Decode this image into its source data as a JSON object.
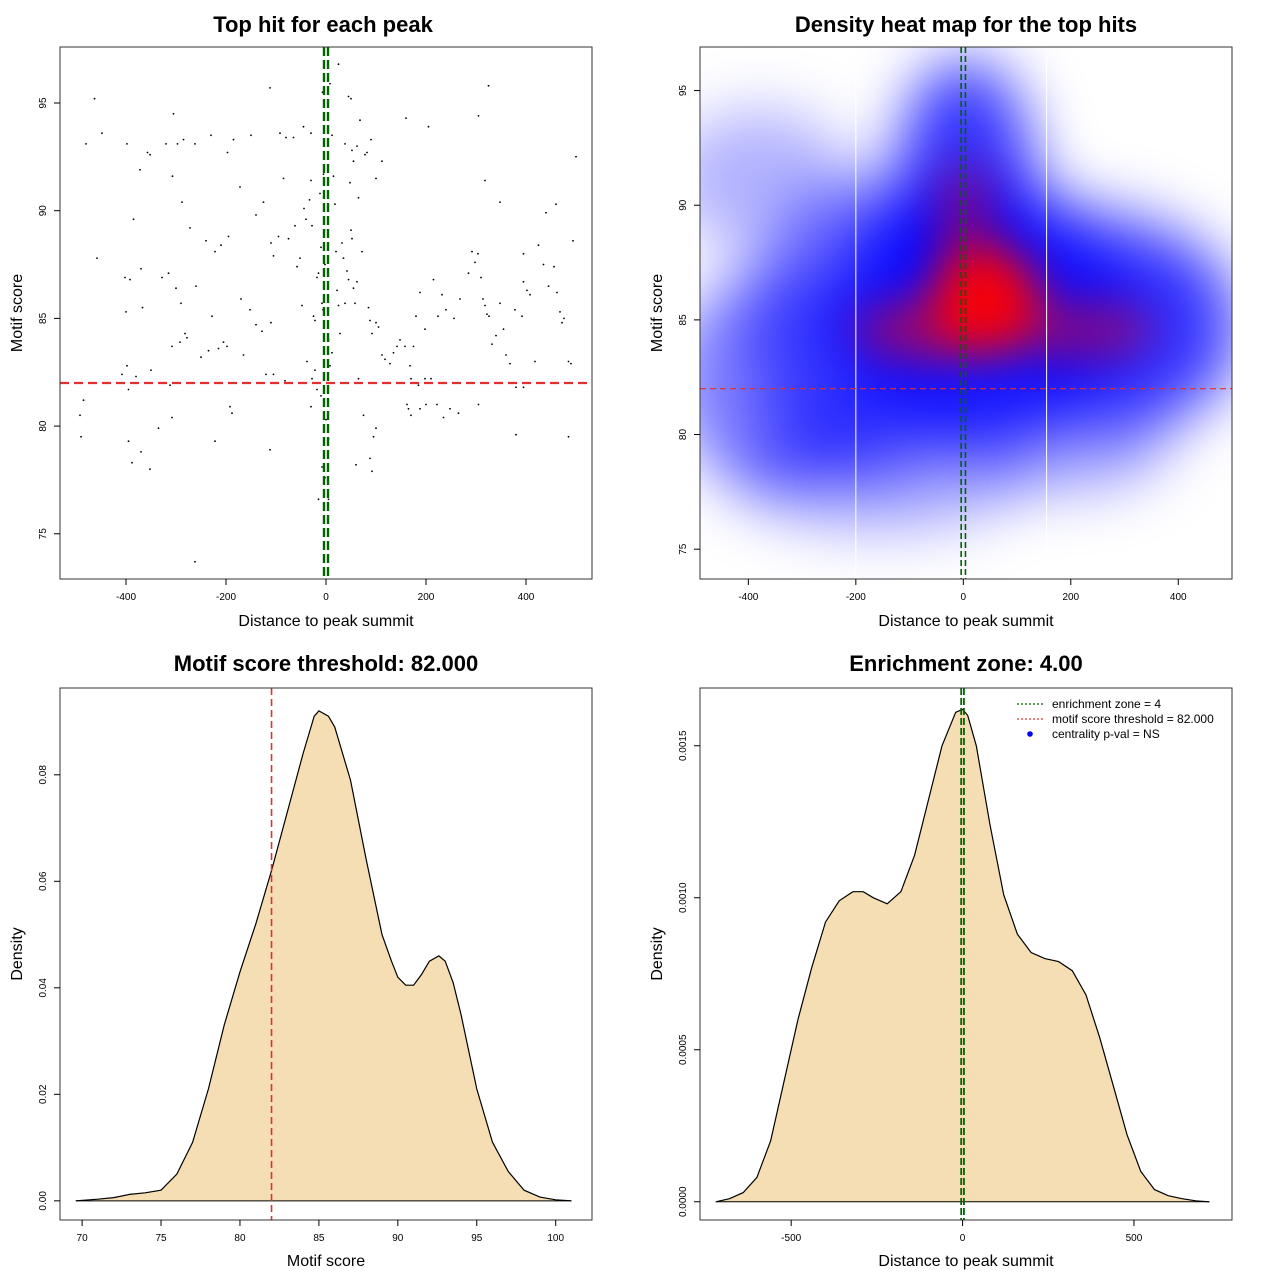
{
  "colors": {
    "threshold": "#e03030",
    "zone": "#006400",
    "fill": "#f5deb3",
    "heat_low": "#ffffff",
    "heat_mid": "#0000ff",
    "heat_high": "#ff0000",
    "legend_point": "#0000ff"
  },
  "chart_data": [
    {
      "id": "scatter",
      "type": "scatter",
      "title": "Top hit for each peak",
      "xlabel": "Distance to peak summit",
      "ylabel": "Motif score",
      "xlim": [
        -532,
        532
      ],
      "ylim": [
        72.9,
        97.6
      ],
      "xticks": [
        -400,
        -200,
        0,
        200,
        400
      ],
      "yticks": [
        75,
        80,
        85,
        90,
        95
      ],
      "threshold_y": 82,
      "zone_x": [
        -4,
        4
      ],
      "points": [
        [
          -463,
          95.2
        ],
        [
          -448,
          93.6
        ],
        [
          -480,
          93.1
        ],
        [
          -398,
          93.1
        ],
        [
          -357,
          92.7
        ],
        [
          -352,
          92.6
        ],
        [
          -320,
          93.1
        ],
        [
          -305,
          94.5
        ],
        [
          -297,
          93.1
        ],
        [
          -285,
          93.3
        ],
        [
          -262,
          93.1
        ],
        [
          -230,
          93.5
        ],
        [
          -197,
          92.7
        ],
        [
          -185,
          93.3
        ],
        [
          -150,
          93.5
        ],
        [
          -172,
          91.1
        ],
        [
          -307,
          91.6
        ],
        [
          -372,
          91.9
        ],
        [
          -385,
          89.6
        ],
        [
          -288,
          90.4
        ],
        [
          -272,
          89.2
        ],
        [
          -240,
          88.6
        ],
        [
          -222,
          88.1
        ],
        [
          -210,
          88.4
        ],
        [
          -195,
          88.8
        ],
        [
          -458,
          87.8
        ],
        [
          -402,
          86.9
        ],
        [
          -392,
          86.8
        ],
        [
          -370,
          87.3
        ],
        [
          -328,
          86.9
        ],
        [
          -315,
          87.1
        ],
        [
          -300,
          86.4
        ],
        [
          -290,
          85.7
        ],
        [
          -260,
          86.5
        ],
        [
          -228,
          85.1
        ],
        [
          -170,
          85.9
        ],
        [
          -152,
          85.4
        ],
        [
          -140,
          84.7
        ],
        [
          -110,
          84.8
        ],
        [
          -128,
          84.4
        ],
        [
          -400,
          85.3
        ],
        [
          -367,
          85.5
        ],
        [
          -308,
          83.7
        ],
        [
          -292,
          83.9
        ],
        [
          -282,
          84.3
        ],
        [
          -278,
          84.1
        ],
        [
          -250,
          83.2
        ],
        [
          -235,
          83.5
        ],
        [
          -215,
          83.6
        ],
        [
          -205,
          83.9
        ],
        [
          -198,
          83.7
        ],
        [
          -165,
          83.3
        ],
        [
          -120,
          82.4
        ],
        [
          -105,
          82.4
        ],
        [
          -82,
          82.1
        ],
        [
          -398,
          82.8
        ],
        [
          -380,
          82.3
        ],
        [
          -408,
          82.4
        ],
        [
          -395,
          81.7
        ],
        [
          -312,
          81.9
        ],
        [
          -350,
          82.6
        ],
        [
          -492,
          80.5
        ],
        [
          -485,
          81.2
        ],
        [
          -490,
          79.5
        ],
        [
          -395,
          79.3
        ],
        [
          -388,
          78.3
        ],
        [
          -370,
          78.8
        ],
        [
          -352,
          78.0
        ],
        [
          -335,
          79.9
        ],
        [
          -308,
          80.4
        ],
        [
          -192,
          80.9
        ],
        [
          -188,
          80.6
        ],
        [
          -222,
          79.3
        ],
        [
          -112,
          78.9
        ],
        [
          -262,
          73.7
        ],
        [
          -140,
          89.8
        ],
        [
          -125,
          90.4
        ],
        [
          -110,
          88.5
        ],
        [
          -105,
          87.9
        ],
        [
          -95,
          88.8
        ],
        [
          -85,
          91.5
        ],
        [
          -75,
          88.7
        ],
        [
          -62,
          89.3
        ],
        [
          -58,
          87.4
        ],
        [
          -48,
          85.6
        ],
        [
          -52,
          87.8
        ],
        [
          -44,
          90.1
        ],
        [
          -40,
          89.6
        ],
        [
          -33,
          90.5
        ],
        [
          -30,
          91.4
        ],
        [
          -28,
          89.3
        ],
        [
          -25,
          85.1
        ],
        [
          -22,
          84.9
        ],
        [
          -18,
          86.9
        ],
        [
          -15,
          87.1
        ],
        [
          -12,
          90.8
        ],
        [
          -10,
          88.3
        ],
        [
          -8,
          85.7
        ],
        [
          -6,
          85.4
        ],
        [
          -5,
          91.7
        ],
        [
          -3,
          89.1
        ],
        [
          -2,
          87.5
        ],
        [
          -92,
          93.6
        ],
        [
          -80,
          93.4
        ],
        [
          -65,
          93.4
        ],
        [
          -45,
          93.9
        ],
        [
          -30,
          93.6
        ],
        [
          -112,
          95.7
        ],
        [
          -7,
          95.5
        ],
        [
          8,
          95.9
        ],
        [
          12,
          93.5
        ],
        [
          15,
          91.6
        ],
        [
          18,
          90.3
        ],
        [
          20,
          88.1
        ],
        [
          22,
          86.3
        ],
        [
          25,
          85.6
        ],
        [
          28,
          84.3
        ],
        [
          32,
          88.5
        ],
        [
          35,
          87.8
        ],
        [
          38,
          85.7
        ],
        [
          42,
          87.2
        ],
        [
          45,
          86.8
        ],
        [
          48,
          91.3
        ],
        [
          50,
          89.1
        ],
        [
          52,
          88.7
        ],
        [
          55,
          86.4
        ],
        [
          58,
          85.7
        ],
        [
          62,
          86.7
        ],
        [
          65,
          90.6
        ],
        [
          72,
          88.1
        ],
        [
          25,
          96.8
        ],
        [
          38,
          93.1
        ],
        [
          45,
          95.3
        ],
        [
          50,
          95.2
        ],
        [
          52,
          92.8
        ],
        [
          55,
          92.3
        ],
        [
          62,
          93.0
        ],
        [
          68,
          94.2
        ],
        [
          78,
          92.6
        ],
        [
          82,
          92.7
        ],
        [
          90,
          93.3
        ],
        [
          100,
          91.5
        ],
        [
          112,
          92.3
        ],
        [
          85,
          85.5
        ],
        [
          88,
          84.9
        ],
        [
          92,
          84.3
        ],
        [
          100,
          84.8
        ],
        [
          105,
          84.6
        ],
        [
          112,
          83.3
        ],
        [
          118,
          83.1
        ],
        [
          128,
          82.9
        ],
        [
          135,
          83.4
        ],
        [
          142,
          83.7
        ],
        [
          148,
          84.0
        ],
        [
          158,
          83.7
        ],
        [
          168,
          82.8
        ],
        [
          175,
          83.7
        ],
        [
          180,
          85.1
        ],
        [
          188,
          86.2
        ],
        [
          198,
          84.5
        ],
        [
          215,
          86.8
        ],
        [
          224,
          85.1
        ],
        [
          232,
          86.1
        ],
        [
          240,
          85.4
        ],
        [
          256,
          85.0
        ],
        [
          268,
          85.9
        ],
        [
          285,
          87.1
        ],
        [
          292,
          88.1
        ],
        [
          298,
          87.6
        ],
        [
          304,
          88.0
        ],
        [
          310,
          86.9
        ],
        [
          314,
          85.9
        ],
        [
          318,
          85.6
        ],
        [
          322,
          85.2
        ],
        [
          326,
          85.1
        ],
        [
          332,
          83.8
        ],
        [
          340,
          84.2
        ],
        [
          348,
          85.7
        ],
        [
          355,
          84.5
        ],
        [
          360,
          83.3
        ],
        [
          368,
          82.9
        ],
        [
          378,
          85.4
        ],
        [
          392,
          85.1
        ],
        [
          395,
          86.7
        ],
        [
          402,
          86.3
        ],
        [
          408,
          86.1
        ],
        [
          418,
          83.0
        ],
        [
          425,
          88.4
        ],
        [
          435,
          87.5
        ],
        [
          445,
          86.5
        ],
        [
          456,
          87.4
        ],
        [
          462,
          86.2
        ],
        [
          468,
          85.3
        ],
        [
          472,
          84.8
        ],
        [
          476,
          85.0
        ],
        [
          485,
          83.0
        ],
        [
          490,
          82.9
        ],
        [
          305,
          94.4
        ],
        [
          318,
          91.4
        ],
        [
          325,
          95.8
        ],
        [
          348,
          90.4
        ],
        [
          395,
          88.0
        ],
        [
          440,
          89.9
        ],
        [
          460,
          90.3
        ],
        [
          494,
          88.6
        ],
        [
          500,
          92.5
        ],
        [
          160,
          94.3
        ],
        [
          205,
          93.9
        ],
        [
          170,
          82.2
        ],
        [
          185,
          81.9
        ],
        [
          198,
          82.2
        ],
        [
          210,
          82.2
        ],
        [
          222,
          81.0
        ],
        [
          235,
          80.4
        ],
        [
          248,
          80.8
        ],
        [
          265,
          80.6
        ],
        [
          305,
          81.0
        ],
        [
          380,
          81.8
        ],
        [
          395,
          81.8
        ],
        [
          400,
          82.0
        ],
        [
          188,
          80.8
        ],
        [
          200,
          81.0
        ],
        [
          170,
          80.5
        ],
        [
          165,
          80.8
        ],
        [
          162,
          81.0
        ],
        [
          100,
          79.9
        ],
        [
          95,
          79.5
        ],
        [
          92,
          77.9
        ],
        [
          88,
          78.5
        ],
        [
          60,
          78.2
        ],
        [
          75,
          80.5
        ],
        [
          65,
          82.2
        ],
        [
          380,
          79.6
        ],
        [
          485,
          79.5
        ],
        [
          5,
          76.6
        ],
        [
          -2,
          77.6
        ],
        [
          -15,
          76.6
        ],
        [
          -8,
          78.1
        ],
        [
          5,
          79.4
        ],
        [
          -30,
          80.9
        ],
        [
          -18,
          81.7
        ],
        [
          -10,
          81.4
        ],
        [
          -38,
          83.0
        ],
        [
          -28,
          82.2
        ],
        [
          -22,
          82.6
        ],
        [
          8,
          82.8
        ],
        [
          12,
          83.4
        ],
        [
          5,
          84.0
        ],
        [
          0,
          80.3
        ]
      ]
    },
    {
      "id": "heatmap",
      "type": "heatmap",
      "title": "Density heat map for the top hits",
      "xlabel": "Distance to peak summit",
      "ylabel": "Motif score",
      "xlim": [
        -490,
        500
      ],
      "ylim": [
        73.7,
        96.9
      ],
      "xticks": [
        -400,
        -200,
        0,
        200,
        400
      ],
      "yticks": [
        75,
        80,
        85,
        90,
        95
      ],
      "threshold_y": 82,
      "zone_x": [
        -4,
        4
      ],
      "grid_x": [
        -200,
        155
      ]
    },
    {
      "id": "score_density",
      "type": "area",
      "title": "Motif score threshold: 82.000",
      "xlabel": "Motif score",
      "ylabel": "Density",
      "xlim": [
        68.6,
        102.3
      ],
      "ylim": [
        -0.0036,
        0.0963
      ],
      "xticks": [
        70,
        75,
        80,
        85,
        90,
        95,
        100
      ],
      "yticks": [
        0.0,
        0.02,
        0.04,
        0.06,
        0.08
      ],
      "ytick_labels": [
        "0.00",
        "0.02",
        "0.04",
        "0.06",
        "0.08"
      ],
      "threshold_x": 82,
      "x": [
        69.6,
        71,
        72,
        73,
        74,
        75,
        76,
        77,
        78,
        79,
        80,
        81,
        82,
        83,
        84,
        84.7,
        85,
        85.6,
        86,
        87,
        88,
        89,
        89.6,
        90,
        90.5,
        91,
        91.5,
        92,
        92.6,
        93,
        93.5,
        94,
        95,
        96,
        97,
        98,
        99,
        100,
        101
      ],
      "y": [
        0.0,
        0.0003,
        0.0006,
        0.0012,
        0.0015,
        0.002,
        0.005,
        0.011,
        0.021,
        0.033,
        0.043,
        0.052,
        0.062,
        0.073,
        0.084,
        0.091,
        0.092,
        0.091,
        0.089,
        0.079,
        0.064,
        0.05,
        0.045,
        0.042,
        0.0405,
        0.0405,
        0.0425,
        0.045,
        0.046,
        0.045,
        0.041,
        0.035,
        0.021,
        0.011,
        0.0055,
        0.002,
        0.0007,
        0.0002,
        0.0
      ]
    },
    {
      "id": "distance_density",
      "type": "area",
      "title": "Enrichment zone: 4.00",
      "xlabel": "Distance to peak summit",
      "ylabel": "Density",
      "xlim": [
        -766,
        786
      ],
      "ylim": [
        -6e-05,
        0.00169
      ],
      "xticks": [
        -500,
        0,
        500
      ],
      "yticks": [
        0.0,
        0.0005,
        0.001,
        0.0015
      ],
      "ytick_labels": [
        "0.0000",
        "0.0005",
        "0.0010",
        "0.0015"
      ],
      "zone_x": [
        -4,
        4
      ],
      "x": [
        -720,
        -680,
        -640,
        -600,
        -560,
        -520,
        -480,
        -440,
        -400,
        -360,
        -320,
        -290,
        -260,
        -220,
        -180,
        -140,
        -100,
        -60,
        -20,
        0,
        15,
        40,
        80,
        120,
        160,
        200,
        240,
        280,
        320,
        360,
        400,
        440,
        480,
        520,
        560,
        600,
        640,
        680,
        720
      ],
      "y": [
        0.0,
        1e-05,
        3e-05,
        8e-05,
        0.0002,
        0.0004,
        0.0006,
        0.00077,
        0.00092,
        0.00099,
        0.00102,
        0.00102,
        0.001,
        0.00098,
        0.00102,
        0.00114,
        0.00132,
        0.0015,
        0.00161,
        0.00162,
        0.0016,
        0.0015,
        0.00124,
        0.00101,
        0.00088,
        0.00082,
        0.0008,
        0.00079,
        0.00076,
        0.00068,
        0.00054,
        0.00038,
        0.00022,
        0.0001,
        4e-05,
        2e-05,
        1e-05,
        3e-06,
        0.0
      ],
      "legend": [
        {
          "label": "enrichment zone = 4",
          "kind": "dotted",
          "color": "#006400"
        },
        {
          "label": "motif score threshold = 82.000",
          "kind": "dotted",
          "color": "#e03030"
        },
        {
          "label": "centrality p-val = NS",
          "kind": "point",
          "color": "#0000ff"
        }
      ]
    }
  ]
}
